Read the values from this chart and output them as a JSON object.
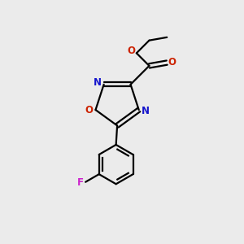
{
  "background_color": "#ebebeb",
  "bond_color": "#000000",
  "N_color": "#1414cc",
  "O_color": "#cc2200",
  "F_color": "#cc22cc",
  "figsize": [
    3.0,
    3.0
  ],
  "dpi": 100,
  "xlim": [
    0,
    10
  ],
  "ylim": [
    0,
    10
  ]
}
